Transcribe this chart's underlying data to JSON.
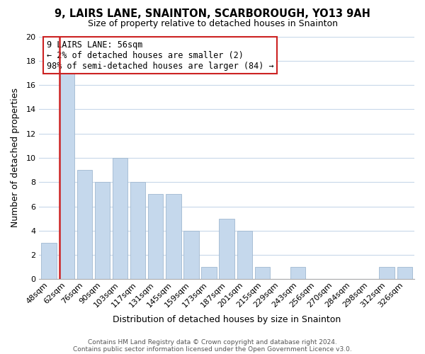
{
  "title": "9, LAIRS LANE, SNAINTON, SCARBOROUGH, YO13 9AH",
  "subtitle": "Size of property relative to detached houses in Snainton",
  "xlabel": "Distribution of detached houses by size in Snainton",
  "ylabel": "Number of detached properties",
  "categories": [
    "48sqm",
    "62sqm",
    "76sqm",
    "90sqm",
    "103sqm",
    "117sqm",
    "131sqm",
    "145sqm",
    "159sqm",
    "173sqm",
    "187sqm",
    "201sqm",
    "215sqm",
    "229sqm",
    "243sqm",
    "256sqm",
    "270sqm",
    "284sqm",
    "298sqm",
    "312sqm",
    "326sqm"
  ],
  "values": [
    3,
    17,
    9,
    8,
    10,
    8,
    7,
    7,
    4,
    1,
    5,
    4,
    1,
    0,
    1,
    0,
    0,
    0,
    0,
    1,
    1
  ],
  "bar_color": "#c5d8ec",
  "bar_edge_color": "#a0b8d0",
  "ylim": [
    0,
    20
  ],
  "yticks": [
    0,
    2,
    4,
    6,
    8,
    10,
    12,
    14,
    16,
    18,
    20
  ],
  "annotation_title": "9 LAIRS LANE: 56sqm",
  "annotation_line1": "← 2% of detached houses are smaller (2)",
  "annotation_line2": "98% of semi-detached houses are larger (84) →",
  "annotation_box_color": "#ffffff",
  "annotation_box_edge_color": "#cc2222",
  "red_line_x": 0.575,
  "footer_line1": "Contains HM Land Registry data © Crown copyright and database right 2024.",
  "footer_line2": "Contains public sector information licensed under the Open Government Licence v3.0.",
  "background_color": "#ffffff",
  "grid_color": "#c8d8ea",
  "title_fontsize": 10.5,
  "subtitle_fontsize": 9,
  "ylabel_fontsize": 9,
  "xlabel_fontsize": 9,
  "tick_fontsize": 8,
  "annot_fontsize": 8.5,
  "footer_fontsize": 6.5
}
